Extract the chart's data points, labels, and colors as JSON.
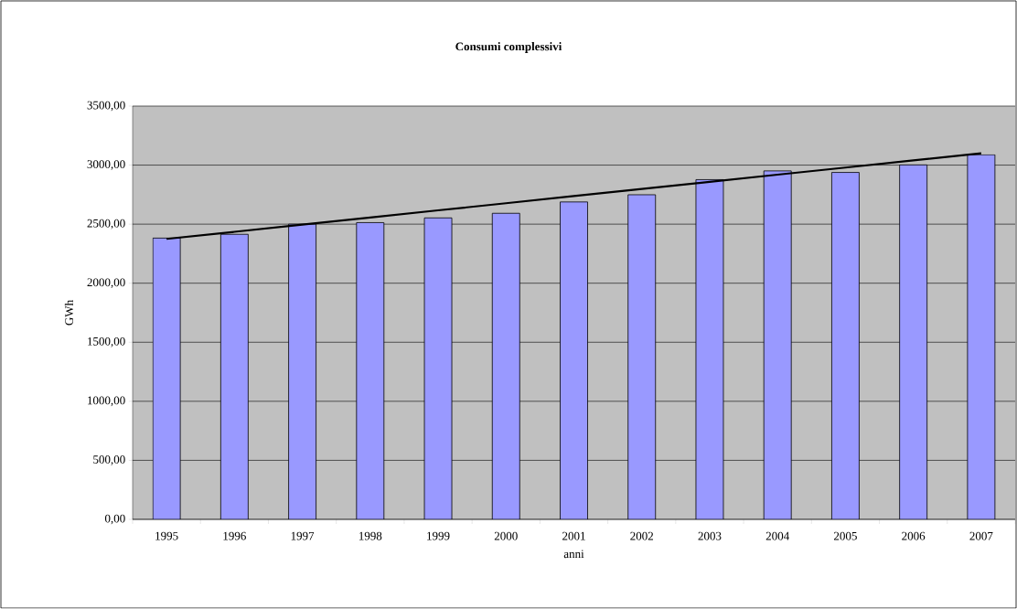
{
  "chart_data": {
    "type": "bar",
    "title": "Consumi complessivi",
    "xlabel": "anni",
    "ylabel": "GWh",
    "categories": [
      "1995",
      "1996",
      "1997",
      "1998",
      "1999",
      "2000",
      "2001",
      "2002",
      "2003",
      "2004",
      "2005",
      "2006",
      "2007"
    ],
    "series": [
      {
        "color": "#9999ff",
        "values": [
          2382,
          2414,
          2500,
          2513,
          2553,
          2592,
          2688,
          2749,
          2877,
          2951,
          2938,
          3002,
          3088
        ]
      },
      {
        "type": "line",
        "color": "#000000",
        "values": [
          2375,
          2435,
          2496,
          2556,
          2617,
          2677,
          2738,
          2798,
          2858,
          2919,
          2979,
          3040,
          3100
        ]
      }
    ],
    "ylim": [
      0,
      3500
    ],
    "yticks": [
      {
        "value": 0,
        "label": "0,00"
      },
      {
        "value": 500,
        "label": "500,00"
      },
      {
        "value": 1000,
        "label": "1000,00"
      },
      {
        "value": 1500,
        "label": "1500,00"
      },
      {
        "value": 2000,
        "label": "2000,00"
      },
      {
        "value": 2500,
        "label": "2500,00"
      },
      {
        "value": 3000,
        "label": "3000,00"
      },
      {
        "value": 3500,
        "label": "3500,00"
      }
    ],
    "grid": "y"
  }
}
